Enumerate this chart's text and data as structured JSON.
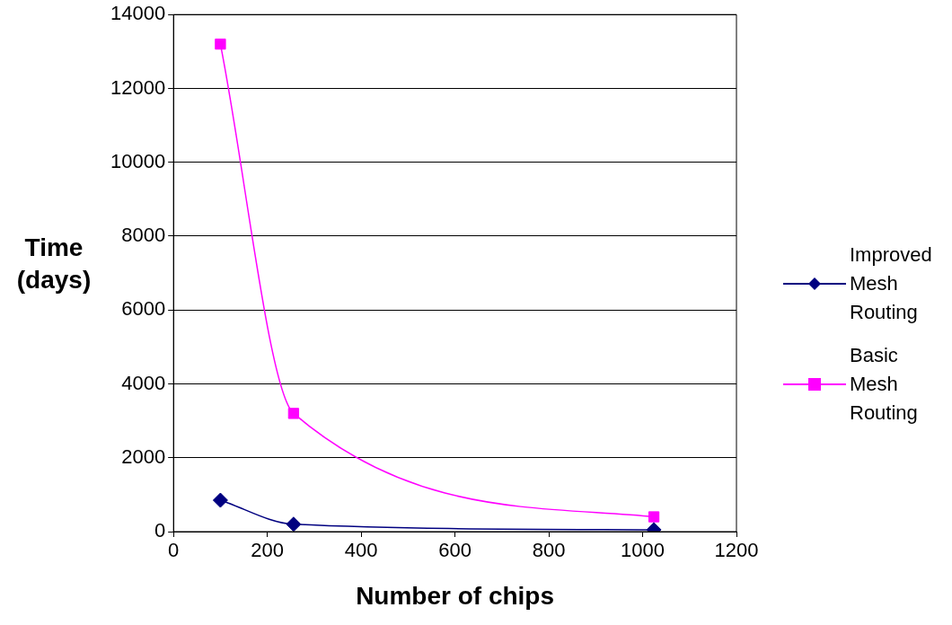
{
  "chart_data": {
    "type": "line",
    "xlabel": "Number of chips",
    "ylabel": "Time (days)",
    "xlim": [
      0,
      1200
    ],
    "xticks": [
      0,
      200,
      400,
      600,
      800,
      1000,
      1200
    ],
    "ylim": [
      0,
      14000
    ],
    "yticks": [
      0,
      2000,
      4000,
      6000,
      8000,
      10000,
      12000,
      14000
    ],
    "grid": "y",
    "legend": "right",
    "series": [
      {
        "name": "Improved Mesh Routing",
        "color": "#000080",
        "marker": "diamond",
        "x": [
          100,
          256,
          1024
        ],
        "values": [
          850,
          200,
          50
        ]
      },
      {
        "name": "Basic Mesh Routing",
        "color": "#ff00ff",
        "marker": "square",
        "x": [
          100,
          256,
          1024
        ],
        "values": [
          13200,
          3200,
          400
        ]
      }
    ]
  }
}
